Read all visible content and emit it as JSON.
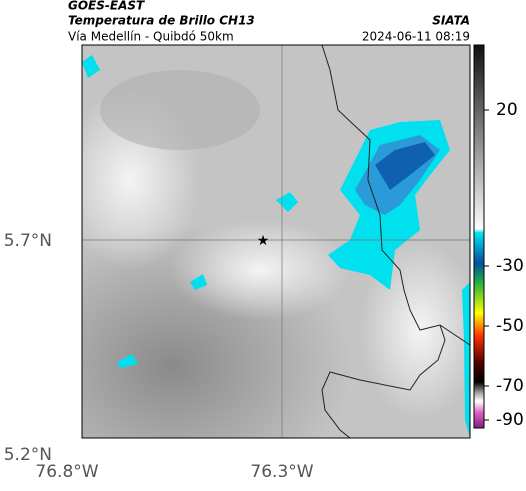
{
  "header": {
    "satellite": "GOES-EAST",
    "product": "Temperatura de Brillo CH13",
    "source": "SIATA",
    "route": "Vía Medellín - Quibdó 50km",
    "datetime": "2024-06-11 08:19"
  },
  "map": {
    "lat_labels": [
      "5.7°N",
      "5.2°N"
    ],
    "lon_labels": [
      "76.8°W",
      "76.3°W"
    ]
  },
  "colorbar": {
    "ticks": [
      20,
      -30,
      -50,
      -70,
      -90
    ]
  }
}
